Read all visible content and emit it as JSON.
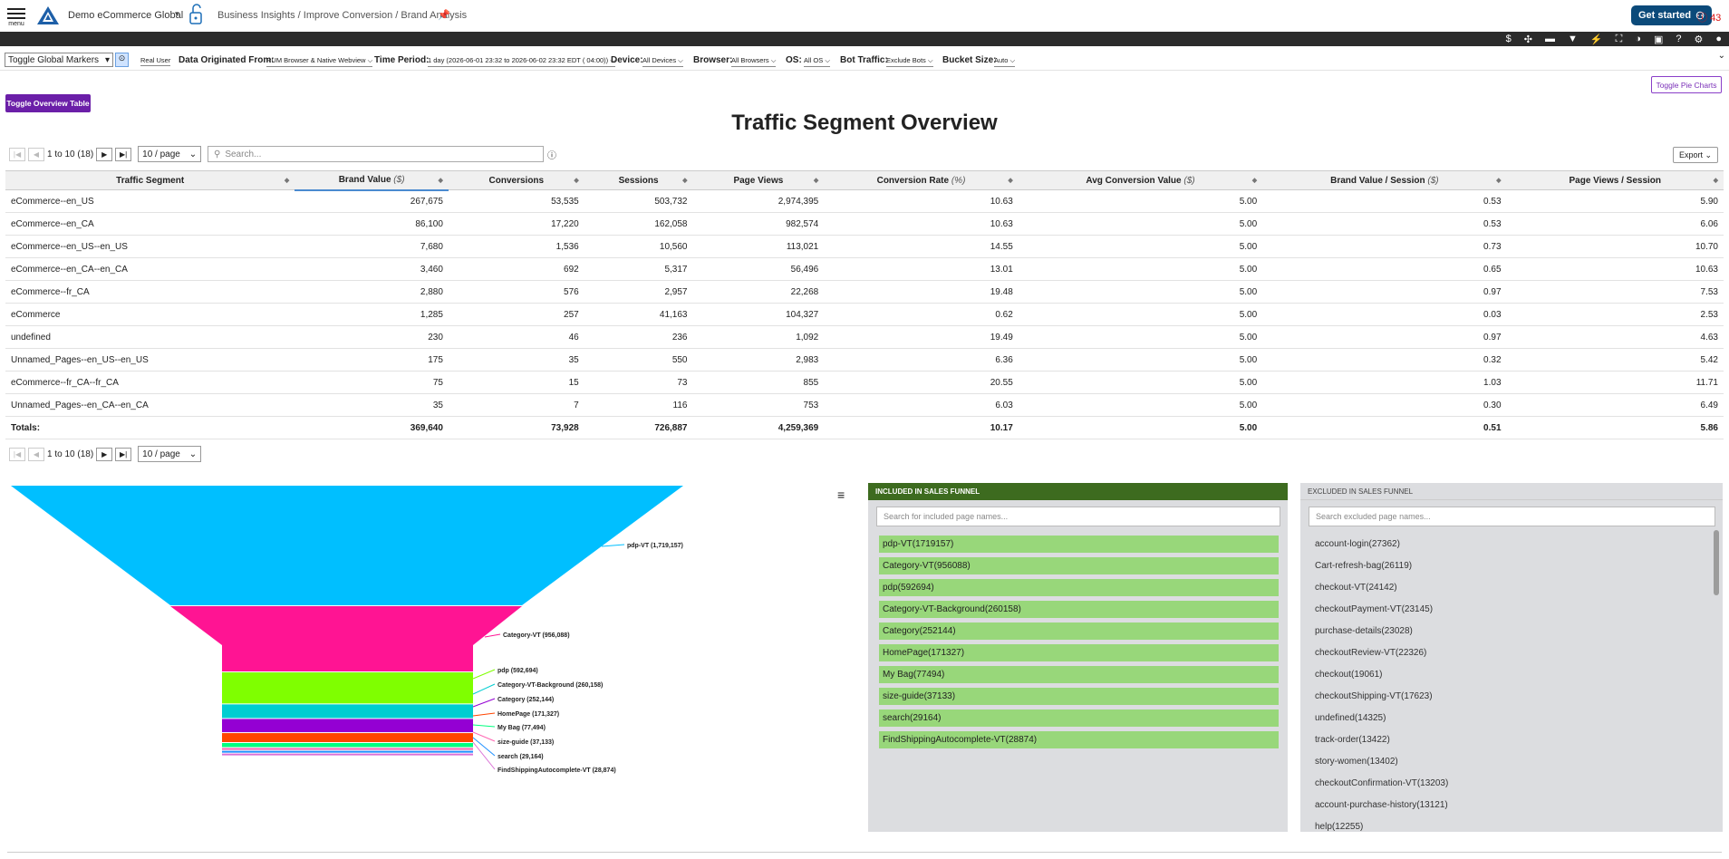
{
  "header": {
    "menu_label": "menu",
    "app_title": "Demo eCommerce Global",
    "breadcrumb": "Business Insights / Improve Conversion / Brand Analysis",
    "get_started": "Get started",
    "alert_count": "43"
  },
  "toolbar_icons": [
    "dollar-icon",
    "share-icon",
    "comment-icon",
    "filter-icon",
    "bolt-icon",
    "fullscreen-icon",
    "contrast-icon",
    "info-icon",
    "help-icon",
    "gear-icon",
    "user-icon"
  ],
  "filters": {
    "global_markers": "Toggle Global Markers",
    "real_user": "Real User",
    "origin_label": "Data Originated From:",
    "origin_value": "RUM Browser & Native Webview",
    "period_label": "Time Period:",
    "period_value": "1 day (2026-06-01 23:32 to 2026-06-02 23:32 EDT ( 04:00))",
    "device_label": "Device:",
    "device_value": "All Devices",
    "browser_label": "Browser:",
    "browser_value": "All Browsers",
    "os_label": "OS:",
    "os_value": "All OS",
    "bot_label": "Bot Traffic:",
    "bot_value": "Exclude Bots",
    "bucket_label": "Bucket Size:",
    "bucket_value": "Auto"
  },
  "buttons": {
    "toggle_overview": "Toggle Overview Table",
    "toggle_pie": "Toggle Pie Charts",
    "export": "Export"
  },
  "title": "Traffic Segment Overview",
  "pager": {
    "range": "1 to 10 (18)",
    "per_page": "10 / page"
  },
  "search_placeholder": "Search...",
  "table": {
    "columns": [
      {
        "label": "Traffic Segment",
        "unit": ""
      },
      {
        "label": "Brand Value",
        "unit": "($)"
      },
      {
        "label": "Conversions",
        "unit": ""
      },
      {
        "label": "Sessions",
        "unit": ""
      },
      {
        "label": "Page Views",
        "unit": ""
      },
      {
        "label": "Conversion Rate",
        "unit": "(%)"
      },
      {
        "label": "Avg Conversion Value",
        "unit": "($)"
      },
      {
        "label": "Brand Value / Session",
        "unit": "($)"
      },
      {
        "label": "Page Views / Session",
        "unit": ""
      }
    ],
    "rows": [
      [
        "eCommerce--en_US",
        "267,675",
        "53,535",
        "503,732",
        "2,974,395",
        "10.63",
        "5.00",
        "0.53",
        "5.90"
      ],
      [
        "eCommerce--en_CA",
        "86,100",
        "17,220",
        "162,058",
        "982,574",
        "10.63",
        "5.00",
        "0.53",
        "6.06"
      ],
      [
        "eCommerce--en_US--en_US",
        "7,680",
        "1,536",
        "10,560",
        "113,021",
        "14.55",
        "5.00",
        "0.73",
        "10.70"
      ],
      [
        "eCommerce--en_CA--en_CA",
        "3,460",
        "692",
        "5,317",
        "56,496",
        "13.01",
        "5.00",
        "0.65",
        "10.63"
      ],
      [
        "eCommerce--fr_CA",
        "2,880",
        "576",
        "2,957",
        "22,268",
        "19.48",
        "5.00",
        "0.97",
        "7.53"
      ],
      [
        "eCommerce",
        "1,285",
        "257",
        "41,163",
        "104,327",
        "0.62",
        "5.00",
        "0.03",
        "2.53"
      ],
      [
        "undefined",
        "230",
        "46",
        "236",
        "1,092",
        "19.49",
        "5.00",
        "0.97",
        "4.63"
      ],
      [
        "Unnamed_Pages--en_US--en_US",
        "175",
        "35",
        "550",
        "2,983",
        "6.36",
        "5.00",
        "0.32",
        "5.42"
      ],
      [
        "eCommerce--fr_CA--fr_CA",
        "75",
        "15",
        "73",
        "855",
        "20.55",
        "5.00",
        "1.03",
        "11.71"
      ],
      [
        "Unnamed_Pages--en_CA--en_CA",
        "35",
        "7",
        "116",
        "753",
        "6.03",
        "5.00",
        "0.30",
        "6.49"
      ]
    ],
    "totals": [
      "Totals:",
      "369,640",
      "73,928",
      "726,887",
      "4,259,369",
      "10.17",
      "5.00",
      "0.51",
      "5.86"
    ]
  },
  "funnel": [
    {
      "label": "pdp-VT (1,719,157)",
      "color": "#00bfff"
    },
    {
      "label": "Category-VT (956,088)",
      "color": "#ff1493"
    },
    {
      "label": "pdp (592,694)",
      "color": "#7fff00"
    },
    {
      "label": "Category-VT-Background (260,158)",
      "color": "#00ced1"
    },
    {
      "label": "Category (252,144)",
      "color": "#9400d3"
    },
    {
      "label": "HomePage (171,327)",
      "color": "#ff4500"
    },
    {
      "label": "My Bag (77,494)",
      "color": "#00ff7f"
    },
    {
      "label": "size-guide (37,133)",
      "color": "#ff69b4"
    },
    {
      "label": "search (29,164)",
      "color": "#1e90ff"
    },
    {
      "label": "FindShippingAutocomplete-VT (28,874)",
      "color": "#da70d6"
    }
  ],
  "included": {
    "header": "INCLUDED IN SALES FUNNEL",
    "placeholder": "Search for included page names...",
    "items": [
      "pdp-VT(1719157)",
      "Category-VT(956088)",
      "pdp(592694)",
      "Category-VT-Background(260158)",
      "Category(252144)",
      "HomePage(171327)",
      "My Bag(77494)",
      "size-guide(37133)",
      "search(29164)",
      "FindShippingAutocomplete-VT(28874)"
    ]
  },
  "excluded": {
    "header": "EXCLUDED IN SALES FUNNEL",
    "placeholder": "Search excluded page names...",
    "items": [
      "account-login(27362)",
      "Cart-refresh-bag(26119)",
      "checkout-VT(24142)",
      "checkoutPayment-VT(23145)",
      "purchase-details(23028)",
      "checkoutReview-VT(22326)",
      "checkout(19061)",
      "checkoutShipping-VT(17623)",
      "undefined(14325)",
      "track-order(13422)",
      "story-women(13402)",
      "checkoutConfirmation-VT(13203)",
      "account-purchase-history(13121)",
      "help(12255)"
    ]
  }
}
